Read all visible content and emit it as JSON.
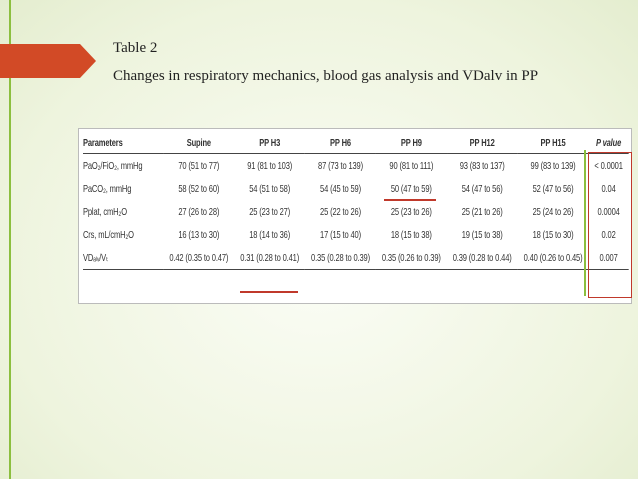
{
  "caption": {
    "title": "Table 2",
    "subtitle": "Changes in respiratory mechanics, blood gas analysis and VDalv in PP"
  },
  "table": {
    "header": [
      "Parameters",
      "Supine",
      "PP H3",
      "PP H6",
      "PP H9",
      "PP H12",
      "PP H15",
      "P value"
    ],
    "rows": [
      [
        "PaO₂/FiO₂, mmHg",
        "70 (51 to 77)",
        "91 (81 to 103)",
        "87 (73 to 139)",
        "90 (81 to 111)",
        "93 (83 to 137)",
        "99 (83 to 139)",
        "< 0.0001"
      ],
      [
        "PaCO₂, mmHg",
        "58 (52 to 60)",
        "54 (51 to 58)",
        "54 (45 to 59)",
        "50 (47 to 59)",
        "54 (47 to 56)",
        "52 (47 to 56)",
        "0.04"
      ],
      [
        "Pplat, cmH₂O",
        "27 (26 to 28)",
        "25 (23 to 27)",
        "25 (22 to 26)",
        "25 (23 to 26)",
        "25 (21 to 26)",
        "25 (24 to 26)",
        "0.0004"
      ],
      [
        "Crs, mL/cmH₂O",
        "16 (13 to 30)",
        "18 (14 to 36)",
        "17 (15 to 40)",
        "18 (15 to 38)",
        "19 (15 to 38)",
        "18 (15 to 30)",
        "0.02"
      ],
      [
        "VDₐₗᵥ/Vₜ",
        "0.42 (0.35 to 0.47)",
        "0.31 (0.28 to 0.41)",
        "0.35 (0.28 to 0.39)",
        "0.35 (0.26 to 0.39)",
        "0.39 (0.28 to 0.44)",
        "0.40 (0.26 to 0.45)",
        "0.007"
      ]
    ]
  }
}
